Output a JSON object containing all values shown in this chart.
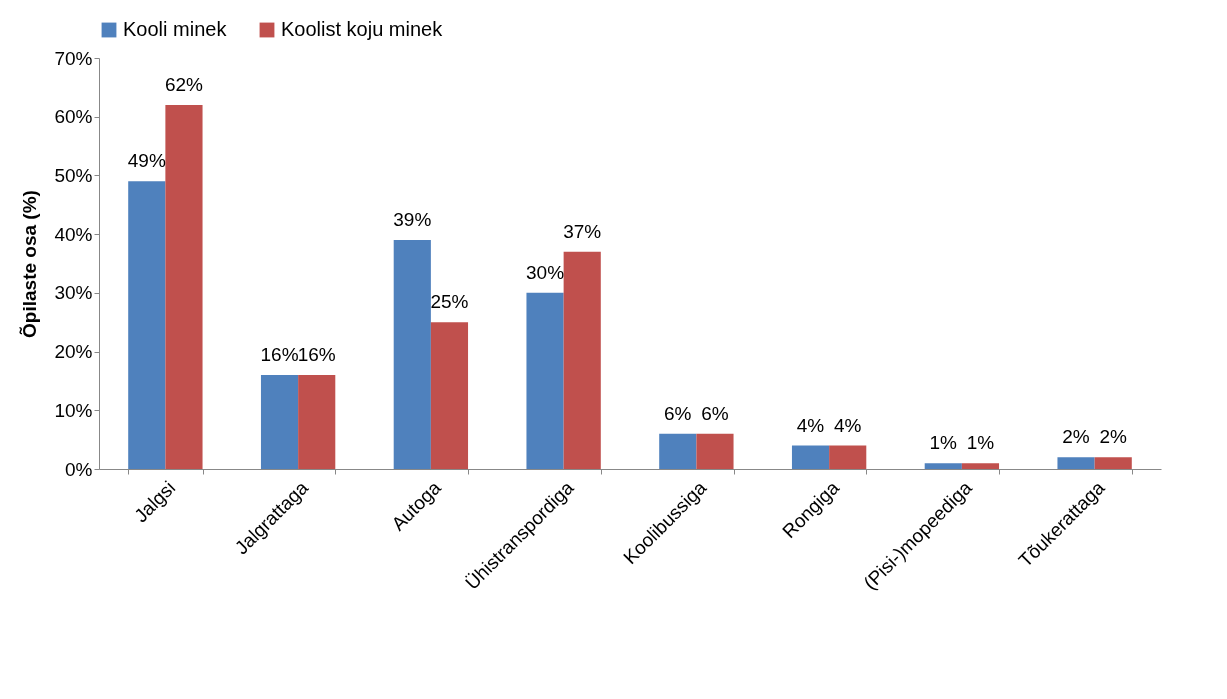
{
  "chart_data": {
    "type": "bar",
    "ylabel": "Õpilaste osa (%)",
    "categories": [
      "Jalgsi",
      "Jalgrattaga",
      "Autoga",
      "Ühistranspordiga",
      "Koolibussiga",
      "Rongiga",
      "(Pisi-)mopeediga",
      "Tõukerattaga"
    ],
    "series": [
      {
        "name": "Kooli minek",
        "color": "#4f81bd",
        "values": [
          49,
          16,
          39,
          30,
          6,
          4,
          1,
          2
        ],
        "value_labels": [
          "49%",
          "16%",
          "39%",
          "30%",
          "6%",
          "4%",
          "1%",
          "2%"
        ]
      },
      {
        "name": "Koolist koju minek",
        "color": "#c0504d",
        "values": [
          62,
          16,
          25,
          37,
          6,
          4,
          1,
          2
        ],
        "value_labels": [
          "62%",
          "16%",
          "25%",
          "37%",
          "6%",
          "4%",
          "1%",
          "2%"
        ]
      }
    ],
    "ylim": [
      0,
      70
    ],
    "yticks": [
      {
        "value": 0,
        "label": "0%"
      },
      {
        "value": 10,
        "label": "10%"
      },
      {
        "value": 20,
        "label": "20%"
      },
      {
        "value": 30,
        "label": "30%"
      },
      {
        "value": 40,
        "label": "40%"
      },
      {
        "value": 50,
        "label": "50%"
      },
      {
        "value": 60,
        "label": "60%"
      },
      {
        "value": 70,
        "label": "70%"
      }
    ],
    "grid": false,
    "legend": "top"
  }
}
